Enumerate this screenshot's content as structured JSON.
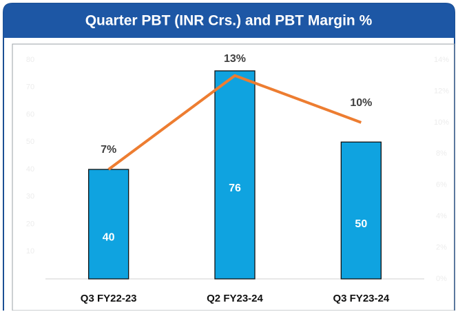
{
  "chart_data": {
    "type": "bar_line",
    "title": "Quarter PBT (INR Crs.) and PBT Margin %",
    "categories": [
      "Q3 FY22-23",
      "Q2 FY23-24",
      "Q3 FY23-24"
    ],
    "series": [
      {
        "type": "bar",
        "color": "#0fa3e0",
        "values": [
          40,
          76,
          50
        ],
        "axis": "y"
      },
      {
        "type": "line",
        "color": "#ed7d31",
        "values": [
          7,
          13,
          10
        ],
        "value_labels": [
          "7%",
          "13%",
          "10%"
        ],
        "axis": "y2"
      }
    ],
    "ylim": [
      0,
      80
    ],
    "yticks": [
      10,
      20,
      30,
      40,
      50,
      60,
      70,
      80
    ],
    "y2lim": [
      0,
      14
    ],
    "y2ticks": [
      {
        "value": 0,
        "label": "0%"
      },
      {
        "value": 2,
        "label": "2%"
      },
      {
        "value": 4,
        "label": "4%"
      },
      {
        "value": 6,
        "label": "6%"
      },
      {
        "value": 8,
        "label": "8%"
      },
      {
        "value": 10,
        "label": "10%"
      },
      {
        "value": 12,
        "label": "12%"
      },
      {
        "value": 14,
        "label": "14%"
      }
    ]
  }
}
